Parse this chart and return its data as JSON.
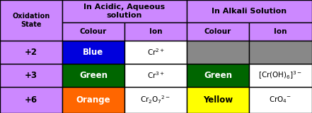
{
  "header1": "In Acidic, Aqueous\nsolution",
  "header2": "In Alkali Solution",
  "col_headers": [
    "Oxidation\nState",
    "Colour",
    "Ion",
    "Colour",
    "Ion"
  ],
  "rows": [
    {
      "state": "+2",
      "acidic_colour_text": "Blue",
      "acidic_colour_bg": "#0000dd",
      "acidic_colour_fg": "#ffffff",
      "acidic_ion": "Cr$^{2+}$",
      "alkali_colour_text": "",
      "alkali_colour_bg": "#888888",
      "alkali_colour_fg": "#888888",
      "alkali_ion": "",
      "alkali_ion_bg": "#888888"
    },
    {
      "state": "+3",
      "acidic_colour_text": "Green",
      "acidic_colour_bg": "#006600",
      "acidic_colour_fg": "#ffffff",
      "acidic_ion": "Cr$^{3+}$",
      "alkali_colour_text": "Green",
      "alkali_colour_bg": "#006600",
      "alkali_colour_fg": "#ffffff",
      "alkali_ion": "[Cr(OH)$_6$]$^{3-}$",
      "alkali_ion_bg": "#ffffff"
    },
    {
      "state": "+6",
      "acidic_colour_text": "Orange",
      "acidic_colour_bg": "#ff6600",
      "acidic_colour_fg": "#ffffff",
      "acidic_ion": "Cr$_2$O$_7$$^{2-}$",
      "alkali_colour_text": "Yellow",
      "alkali_colour_bg": "#ffff00",
      "alkali_colour_fg": "#000000",
      "alkali_ion": "CrO$_4$$^{-}$",
      "alkali_ion_bg": "#ffffff"
    }
  ],
  "header_bg": "#cc88ff",
  "border_color": "#000000",
  "fig_width": 4.41,
  "fig_height": 1.61,
  "dpi": 100
}
